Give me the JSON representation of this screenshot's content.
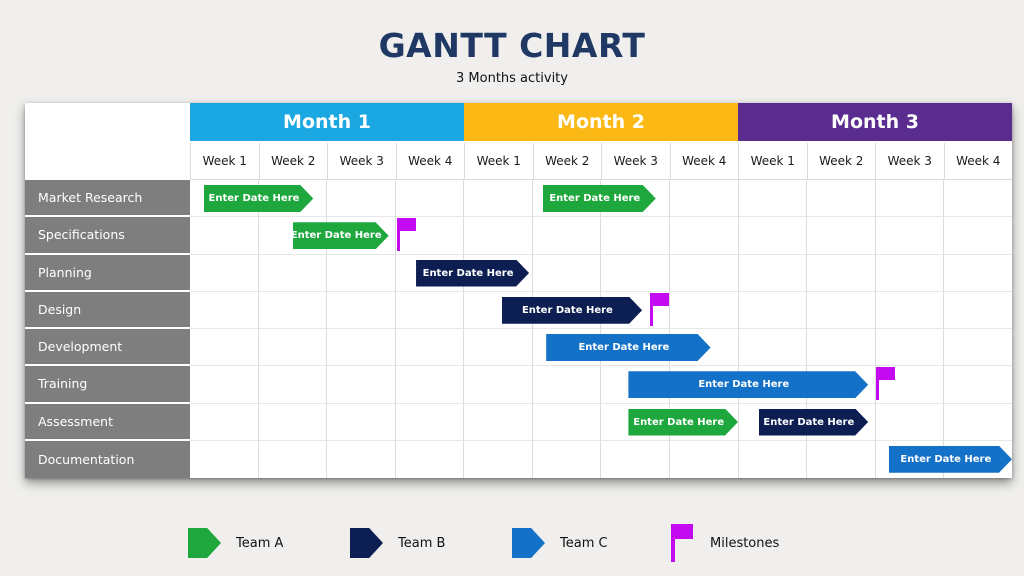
{
  "chart_data": {
    "type": "gantt",
    "title": "GANTT CHART",
    "subtitle": "3 Months activity",
    "bar_placeholder": "Enter Date Here",
    "axis": {
      "unit": "week",
      "range": [
        0,
        12
      ],
      "weeks_per_month": 4
    },
    "months": [
      {
        "label": "Month 1",
        "color": "#1BA8E2"
      },
      {
        "label": "Month 2",
        "color": "#FCB815"
      },
      {
        "label": "Month 3",
        "color": "#5B2C90"
      }
    ],
    "weeks": [
      "Week 1",
      "Week 2",
      "Week 3",
      "Week 4",
      "Week 1",
      "Week 2",
      "Week 3",
      "Week 4",
      "Week 1",
      "Week 2",
      "Week 3",
      "Week 4"
    ],
    "teams": {
      "A": {
        "name": "Team A",
        "color": "#1EA73D"
      },
      "B": {
        "name": "Team B",
        "color": "#0D1F52"
      },
      "C": {
        "name": "Team C",
        "color": "#1471C8"
      }
    },
    "tasks": [
      {
        "name": "Market Research",
        "bars": [
          {
            "team": "A",
            "start": 0.2,
            "end": 1.8
          },
          {
            "team": "A",
            "start": 5.15,
            "end": 6.8
          }
        ]
      },
      {
        "name": "Specifications",
        "bars": [
          {
            "team": "A",
            "start": 1.5,
            "end": 2.9,
            "milestone": true
          }
        ]
      },
      {
        "name": "Planning",
        "bars": [
          {
            "team": "B",
            "start": 3.3,
            "end": 4.95
          }
        ]
      },
      {
        "name": "Design",
        "bars": [
          {
            "team": "B",
            "start": 4.55,
            "end": 6.6,
            "milestone": true
          }
        ]
      },
      {
        "name": "Development",
        "bars": [
          {
            "team": "C",
            "start": 5.2,
            "end": 7.6
          }
        ]
      },
      {
        "name": "Training",
        "bars": [
          {
            "team": "C",
            "start": 6.4,
            "end": 9.9,
            "milestone": true
          }
        ]
      },
      {
        "name": "Assessment",
        "bars": [
          {
            "team": "A",
            "start": 6.4,
            "end": 8.0
          },
          {
            "team": "B",
            "start": 8.3,
            "end": 9.9
          }
        ]
      },
      {
        "name": "Documentation",
        "bars": [
          {
            "team": "C",
            "start": 10.2,
            "end": 12.0
          }
        ]
      }
    ]
  },
  "legend": [
    {
      "label": "Team A",
      "type": "arrow",
      "color": "#1EA73D"
    },
    {
      "label": "Team B",
      "type": "arrow",
      "color": "#0D1F52"
    },
    {
      "label": "Team C",
      "type": "arrow",
      "color": "#1471C8"
    },
    {
      "label": "Milestones",
      "type": "flag",
      "color": "#C40AF0"
    }
  ],
  "colors": {
    "background": "#F0EFED",
    "panel": "#FFFFFF",
    "title": "#1F3864",
    "subtitle_text": "#111111",
    "task_label_bg": "#7E7E7E",
    "task_label_text": "#FFFFFF",
    "grid_line": "#DCDCDC",
    "week_text": "#1A1A1A",
    "bar_text": "#FFFFFF",
    "milestone": "#C40AF0"
  }
}
